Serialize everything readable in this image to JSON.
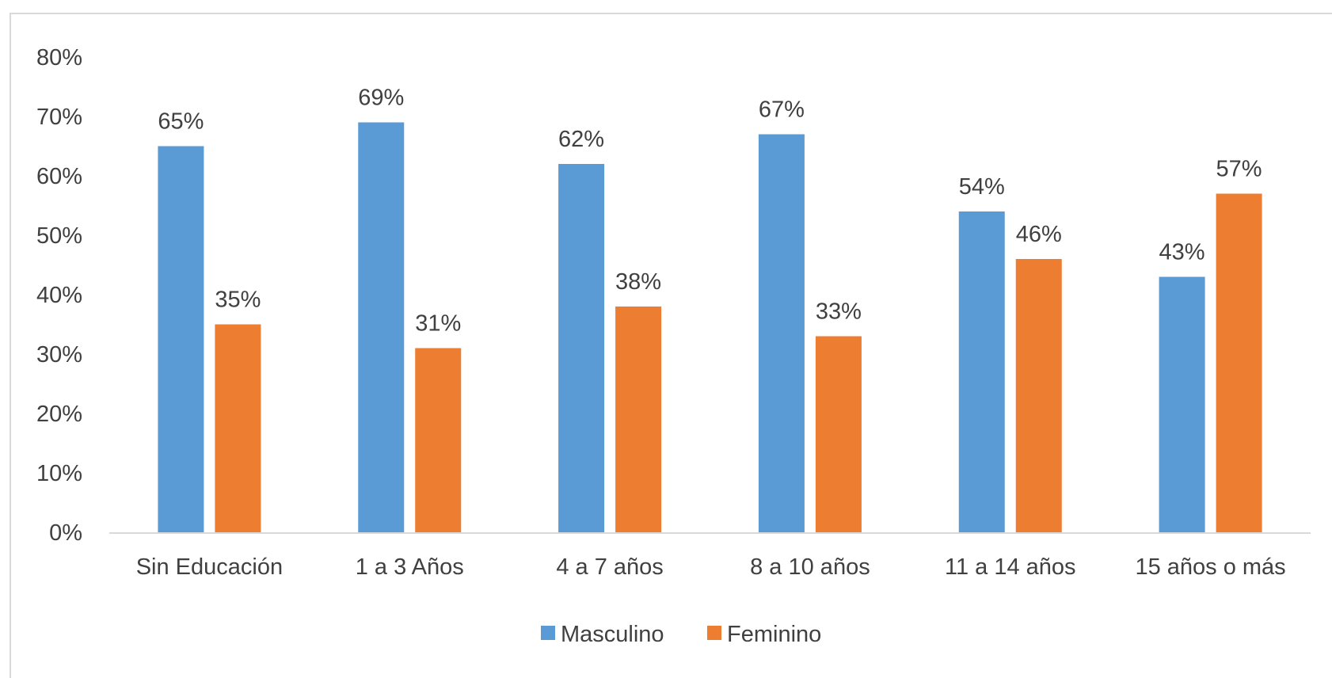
{
  "chart_data": {
    "type": "bar",
    "title": "",
    "xlabel": "",
    "ylabel": "",
    "categories": [
      "Sin Educación",
      "1 a 3 Años",
      "4 a 7 años",
      "8 a 10 años",
      "11 a 14 años",
      "15 años o más"
    ],
    "series": [
      {
        "name": "Masculino",
        "color": "#5b9bd5",
        "values": [
          65,
          69,
          62,
          67,
          54,
          43
        ]
      },
      {
        "name": "Feminino",
        "color": "#ed7d31",
        "values": [
          35,
          31,
          38,
          33,
          46,
          57
        ]
      }
    ],
    "ylim": [
      0,
      80
    ],
    "yticks": [
      0,
      10,
      20,
      30,
      40,
      50,
      60,
      70,
      80
    ],
    "ytick_labels": [
      "0%",
      "10%",
      "20%",
      "30%",
      "40%",
      "50%",
      "60%",
      "70%",
      "80%"
    ],
    "data_labels": [
      [
        "65%",
        "69%",
        "62%",
        "67%",
        "54%",
        "43%"
      ],
      [
        "35%",
        "31%",
        "38%",
        "33%",
        "46%",
        "57%"
      ]
    ],
    "grid": false,
    "legend_position": "bottom"
  }
}
